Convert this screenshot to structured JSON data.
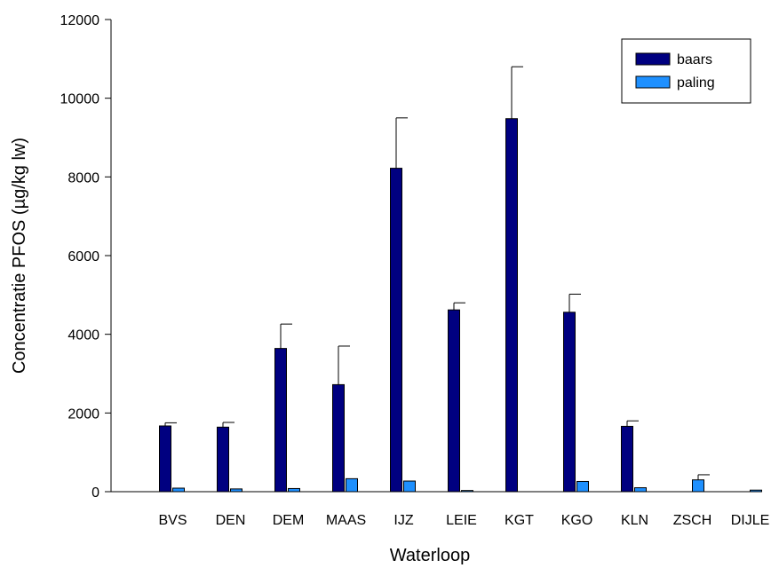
{
  "chart_data": {
    "type": "bar",
    "title": "",
    "xlabel": "Waterloop",
    "ylabel": "Concentratie PFOS (µg/kg lw)",
    "ylim": [
      0,
      12000
    ],
    "yticks": [
      0,
      2000,
      4000,
      6000,
      8000,
      10000,
      12000
    ],
    "categories": [
      "BVS",
      "DEN",
      "DEM",
      "MAAS",
      "IJZ",
      "LEIE",
      "KGT",
      "KGO",
      "KLN",
      "ZSCH",
      "DIJLE"
    ],
    "series": [
      {
        "name": "baars",
        "color": "#000080",
        "values": [
          1670,
          1640,
          3640,
          2720,
          8220,
          4620,
          9480,
          4560,
          1660,
          null,
          null
        ],
        "error": [
          80,
          120,
          620,
          980,
          1280,
          180,
          1320,
          460,
          140,
          null,
          null
        ]
      },
      {
        "name": "paling",
        "color": "#1e90ff",
        "values": [
          90,
          70,
          80,
          330,
          270,
          30,
          null,
          260,
          100,
          300,
          40
        ],
        "error": [
          null,
          null,
          null,
          null,
          null,
          null,
          null,
          null,
          null,
          130,
          null
        ]
      }
    ],
    "legend_position": "top-right",
    "grid": false
  }
}
